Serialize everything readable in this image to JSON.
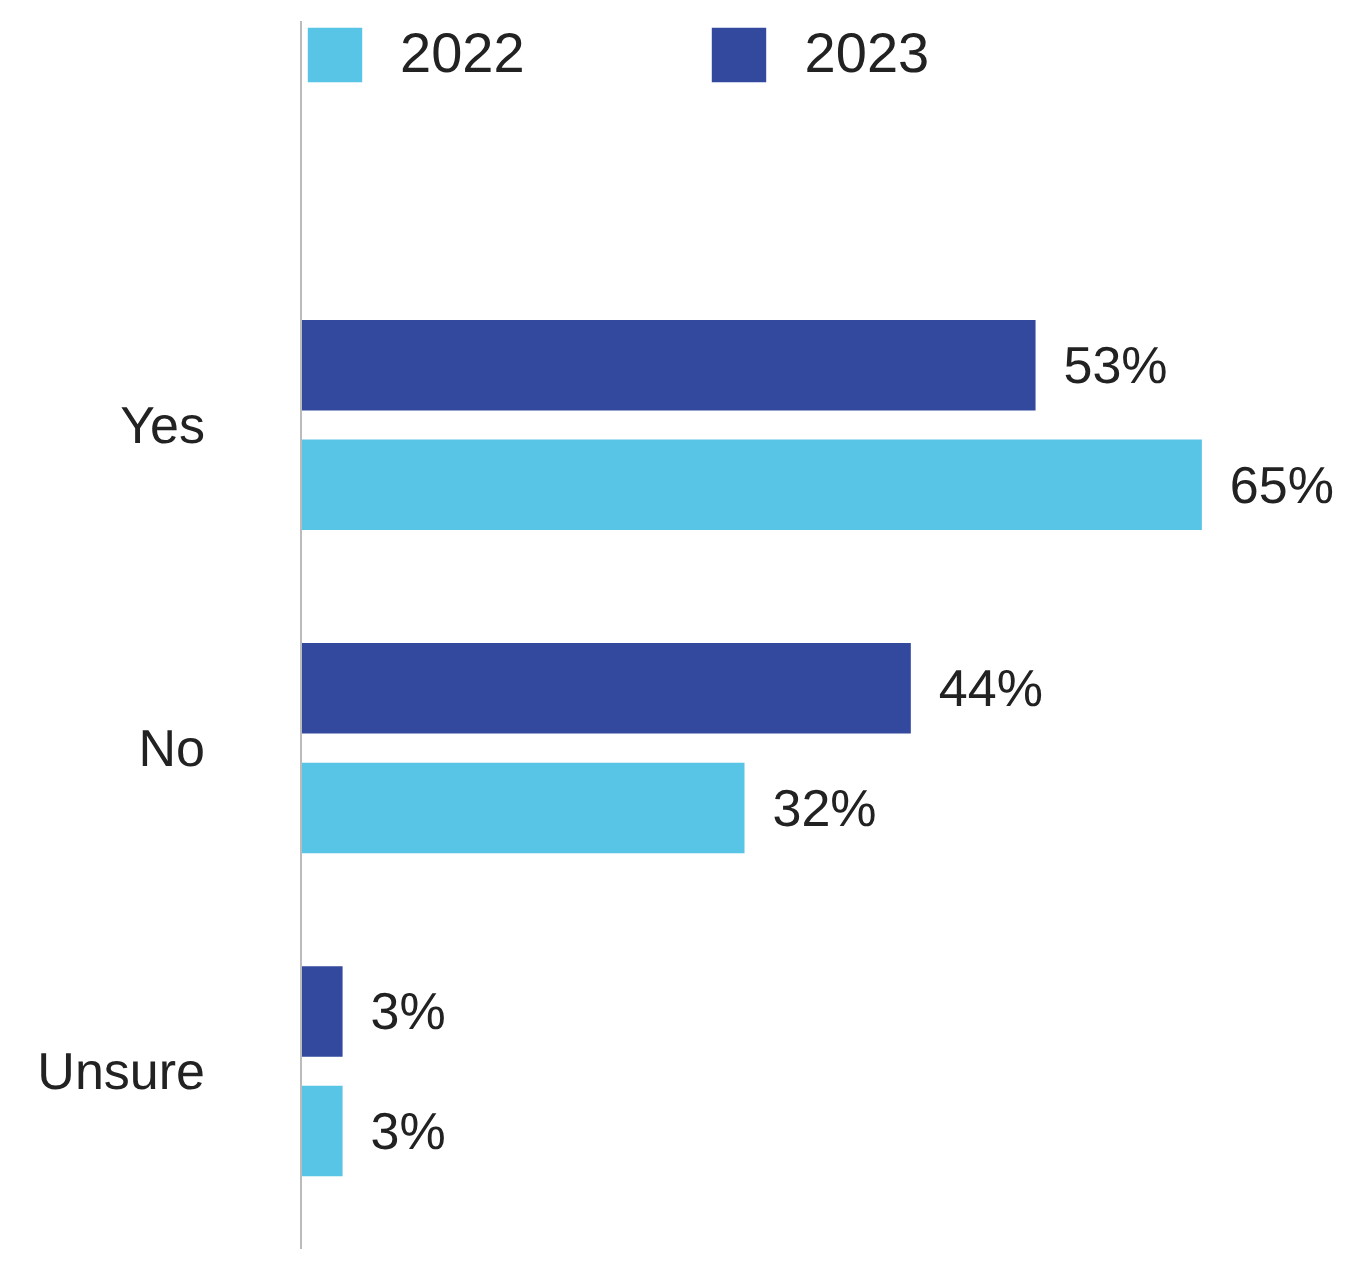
{
  "chart_data": {
    "type": "bar",
    "orientation": "horizontal",
    "categories": [
      "Yes",
      "No",
      "Unsure"
    ],
    "series": [
      {
        "name": "2022",
        "color": "#58c4e6",
        "values": [
          65,
          32,
          3
        ],
        "value_labels": [
          "65%",
          "32%",
          "3%"
        ]
      },
      {
        "name": "2023",
        "color": "#32499e",
        "values": [
          53,
          44,
          3
        ],
        "value_labels": [
          "53%",
          "44%",
          "3%"
        ]
      }
    ],
    "tick_labels": "y",
    "grid": false,
    "legend": "top left"
  }
}
